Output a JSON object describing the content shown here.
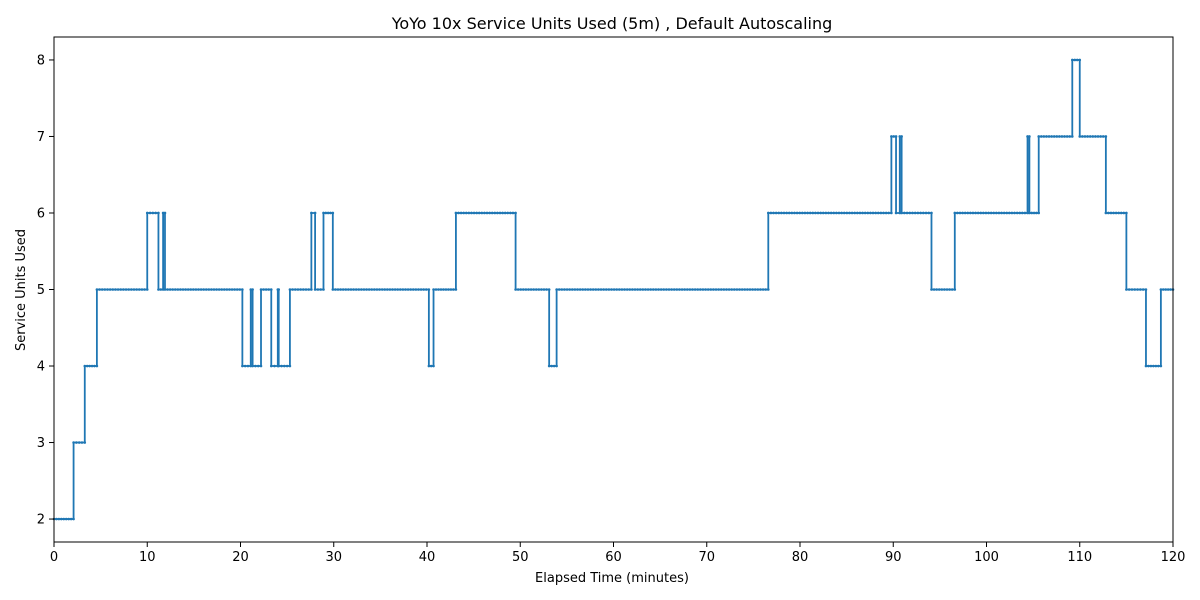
{
  "chart_data": {
    "type": "line",
    "title": "YoYo 10x Service Units Used (5m) , Default Autoscaling",
    "xlabel": "Elapsed Time (minutes)",
    "ylabel": "Service Units Used",
    "xlim": [
      0,
      120
    ],
    "ylim": [
      1.7,
      8.3
    ],
    "xticks": [
      0,
      10,
      20,
      30,
      40,
      50,
      60,
      70,
      80,
      90,
      100,
      110,
      120
    ],
    "yticks": [
      2,
      3,
      4,
      5,
      6,
      7,
      8
    ],
    "grid": false,
    "legend": "none",
    "colors": {
      "line": "#1f77b4",
      "axes": "#000000",
      "background": "#ffffff"
    },
    "series": [
      {
        "marker": "dot",
        "steps": [
          [
            0,
            2
          ],
          [
            2.1,
            2
          ],
          [
            2.1,
            3
          ],
          [
            3.3,
            3
          ],
          [
            3.3,
            4
          ],
          [
            4.6,
            4
          ],
          [
            4.6,
            5
          ],
          [
            10.0,
            5
          ],
          [
            10.0,
            6
          ],
          [
            11.2,
            6
          ],
          [
            11.2,
            5
          ],
          [
            11.7,
            5
          ],
          [
            11.7,
            6
          ],
          [
            11.9,
            6
          ],
          [
            11.9,
            5
          ],
          [
            20.2,
            5
          ],
          [
            20.2,
            4
          ],
          [
            21.1,
            4
          ],
          [
            21.1,
            5
          ],
          [
            21.3,
            5
          ],
          [
            21.3,
            4
          ],
          [
            22.2,
            4
          ],
          [
            22.2,
            5
          ],
          [
            23.3,
            5
          ],
          [
            23.3,
            4
          ],
          [
            24.0,
            4
          ],
          [
            24.0,
            5
          ],
          [
            24.1,
            5
          ],
          [
            24.1,
            4
          ],
          [
            25.3,
            4
          ],
          [
            25.3,
            5
          ],
          [
            27.6,
            5
          ],
          [
            27.6,
            6
          ],
          [
            28.0,
            6
          ],
          [
            28.0,
            5
          ],
          [
            28.9,
            5
          ],
          [
            28.9,
            6
          ],
          [
            29.9,
            6
          ],
          [
            29.9,
            5
          ],
          [
            40.2,
            5
          ],
          [
            40.2,
            4
          ],
          [
            40.7,
            4
          ],
          [
            40.7,
            5
          ],
          [
            43.1,
            5
          ],
          [
            43.1,
            6
          ],
          [
            49.5,
            6
          ],
          [
            49.5,
            5
          ],
          [
            53.1,
            5
          ],
          [
            53.1,
            4
          ],
          [
            53.9,
            4
          ],
          [
            53.9,
            5
          ],
          [
            76.6,
            5
          ],
          [
            76.6,
            6
          ],
          [
            89.8,
            6
          ],
          [
            89.8,
            7
          ],
          [
            90.3,
            7
          ],
          [
            90.3,
            6
          ],
          [
            90.7,
            6
          ],
          [
            90.7,
            7
          ],
          [
            90.9,
            7
          ],
          [
            90.9,
            6
          ],
          [
            94.1,
            6
          ],
          [
            94.1,
            5
          ],
          [
            96.6,
            5
          ],
          [
            96.6,
            6
          ],
          [
            104.4,
            6
          ],
          [
            104.4,
            7
          ],
          [
            104.6,
            7
          ],
          [
            104.6,
            6
          ],
          [
            105.6,
            6
          ],
          [
            105.6,
            7
          ],
          [
            109.2,
            7
          ],
          [
            109.2,
            8
          ],
          [
            110.0,
            8
          ],
          [
            110.0,
            7
          ],
          [
            112.8,
            7
          ],
          [
            112.8,
            6
          ],
          [
            115.0,
            6
          ],
          [
            115.0,
            5
          ],
          [
            117.1,
            5
          ],
          [
            117.1,
            4
          ],
          [
            118.7,
            4
          ],
          [
            118.7,
            5
          ],
          [
            120,
            5
          ]
        ]
      }
    ]
  }
}
